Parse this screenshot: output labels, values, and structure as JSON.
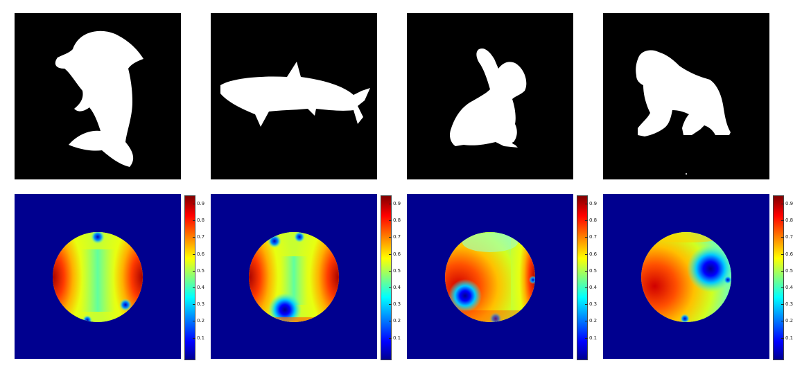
{
  "panels": [
    {
      "shape": "dolphin",
      "silhouette_icon": "dolphin-silhouette-icon"
    },
    {
      "shape": "shark",
      "silhouette_icon": "shark-silhouette-icon"
    },
    {
      "shape": "rabbit",
      "silhouette_icon": "rabbit-silhouette-icon"
    },
    {
      "shape": "gorilla",
      "silhouette_icon": "gorilla-silhouette-icon"
    }
  ],
  "colorbar": {
    "colormap": "jet",
    "ticks": [
      "0.9",
      "0.8",
      "0.7",
      "0.6",
      "0.5",
      "0.4",
      "0.3",
      "0.2",
      "0.1"
    ]
  },
  "colors": {
    "silhouette_background": "#000000",
    "silhouette_fill": "#ffffff",
    "heatmap_background": "#00008f"
  }
}
